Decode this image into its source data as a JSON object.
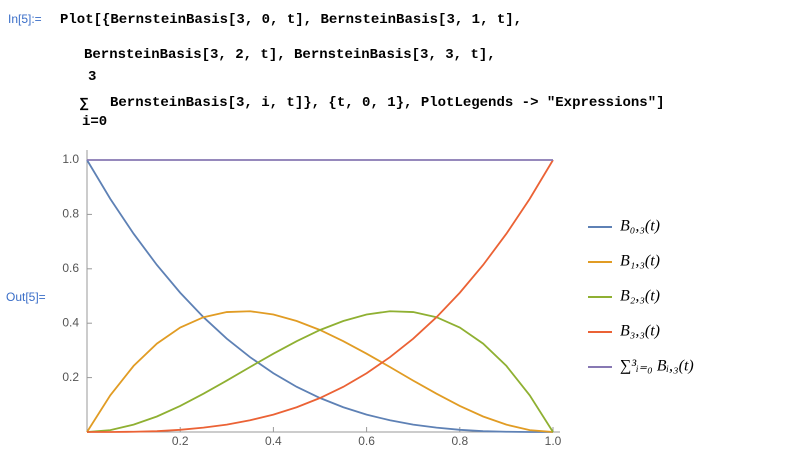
{
  "cell": {
    "input_label": "In[5]:=",
    "output_label": "Out[5]=",
    "lines": [
      "Plot[{BernsteinBasis[3, 0, t], BernsteinBasis[3, 1, t],",
      "BernsteinBasis[3, 2, t], BernsteinBasis[3, 3, t],",
      "BernsteinBasis[3, i, t]}, {t, 0, 1}, PlotLegends -> \"Expressions\"]"
    ],
    "sum_upper": "3",
    "sum_lower": "i=0",
    "sum_symbol": "∑"
  },
  "chart_data": {
    "type": "line",
    "x": [
      0,
      0.05,
      0.1,
      0.15,
      0.2,
      0.25,
      0.3,
      0.35,
      0.4,
      0.45,
      0.5,
      0.55,
      0.6,
      0.65,
      0.7,
      0.75,
      0.8,
      0.85,
      0.9,
      0.95,
      1
    ],
    "series": [
      {
        "name": "B₀,₃(t)",
        "color": "#5e81b5",
        "values": [
          1,
          0.857,
          0.729,
          0.614,
          0.512,
          0.422,
          0.343,
          0.275,
          0.216,
          0.166,
          0.125,
          0.091,
          0.064,
          0.043,
          0.027,
          0.016,
          0.008,
          0.003,
          0.001,
          0,
          0
        ]
      },
      {
        "name": "B₁,₃(t)",
        "color": "#e19c24",
        "values": [
          0,
          0.135,
          0.243,
          0.325,
          0.384,
          0.422,
          0.441,
          0.444,
          0.432,
          0.408,
          0.375,
          0.334,
          0.288,
          0.239,
          0.189,
          0.141,
          0.096,
          0.057,
          0.027,
          0.007,
          0
        ]
      },
      {
        "name": "B₂,₃(t)",
        "color": "#8fb032",
        "values": [
          0,
          0.007,
          0.027,
          0.057,
          0.096,
          0.141,
          0.189,
          0.239,
          0.288,
          0.334,
          0.375,
          0.408,
          0.432,
          0.444,
          0.441,
          0.422,
          0.384,
          0.325,
          0.243,
          0.135,
          0
        ]
      },
      {
        "name": "B₃,₃(t)",
        "color": "#eb6235",
        "values": [
          0,
          0,
          0.001,
          0.003,
          0.008,
          0.016,
          0.027,
          0.043,
          0.064,
          0.091,
          0.125,
          0.166,
          0.216,
          0.275,
          0.343,
          0.422,
          0.512,
          0.614,
          0.729,
          0.857,
          1
        ]
      },
      {
        "name": "∑³ᵢ₌₀ Bᵢ,₃(t)",
        "color": "#8778b3",
        "values": [
          1,
          1,
          1,
          1,
          1,
          1,
          1,
          1,
          1,
          1,
          1,
          1,
          1,
          1,
          1,
          1,
          1,
          1,
          1,
          1,
          1
        ]
      }
    ],
    "xlim": [
      0,
      1
    ],
    "ylim": [
      0,
      1
    ],
    "xticks": [
      0.2,
      0.4,
      0.6,
      0.8,
      {
        "value": 1,
        "label": "1.0"
      }
    ],
    "yticks": [
      0.2,
      0.4,
      0.6,
      0.8,
      {
        "value": 1,
        "label": "1.0"
      }
    ],
    "legend": "right"
  }
}
